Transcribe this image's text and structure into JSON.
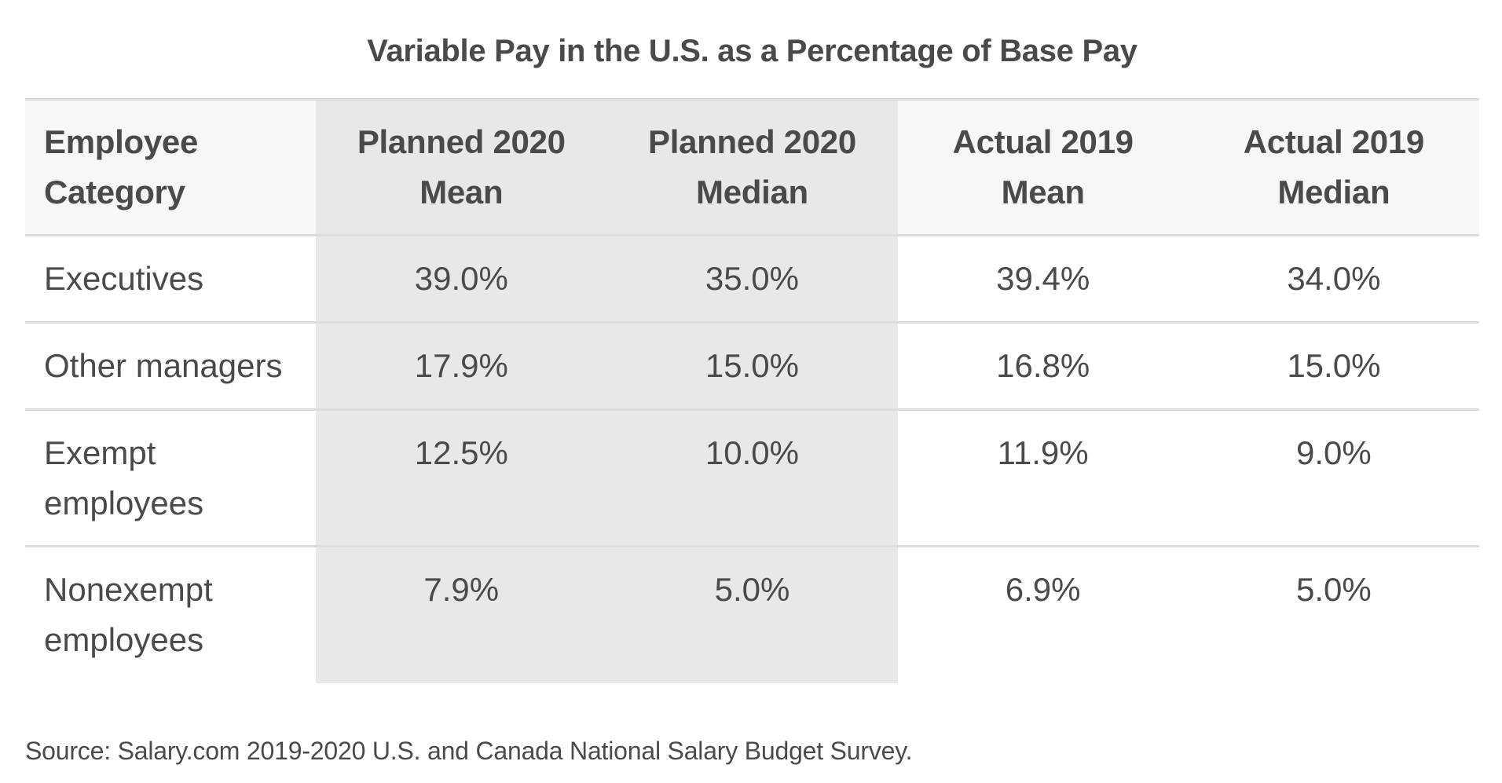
{
  "title": "Variable Pay in the U.S. as a Percentage of Base Pay",
  "table": {
    "headers": [
      {
        "line1": "Employee",
        "line2": "Category"
      },
      {
        "line1": "Planned 2020",
        "line2": "Mean"
      },
      {
        "line1": "Planned 2020",
        "line2": "Median"
      },
      {
        "line1": "Actual 2019",
        "line2": "Mean"
      },
      {
        "line1": "Actual 2019",
        "line2": "Median"
      }
    ],
    "rows": [
      {
        "category_line1": "Executives",
        "category_line2": "",
        "values": [
          "39.0%",
          "35.0%",
          "39.4%",
          "34.0%"
        ]
      },
      {
        "category_line1": "Other managers",
        "category_line2": "",
        "values": [
          "17.9%",
          "15.0%",
          "16.8%",
          "15.0%"
        ]
      },
      {
        "category_line1": "Exempt",
        "category_line2": "employees",
        "values": [
          "12.5%",
          "10.0%",
          "11.9%",
          "9.0%"
        ]
      },
      {
        "category_line1": "Nonexempt",
        "category_line2": "employees",
        "values": [
          "7.9%",
          "5.0%",
          "6.9%",
          "5.0%"
        ]
      }
    ]
  },
  "source": "Source: Salary.com 2019-2020 U.S. and Canada National Salary Budget Survey.",
  "colors": {
    "text": "#4a4a4a",
    "header_bg": "#f7f7f7",
    "highlight_column_bg": "#e8e8e8",
    "border": "#dcdcdc"
  },
  "chart_data": {
    "type": "table",
    "title": "Variable Pay in the U.S. as a Percentage of Base Pay",
    "columns": [
      "Employee Category",
      "Planned 2020 Mean",
      "Planned 2020 Median",
      "Actual 2019 Mean",
      "Actual 2019 Median"
    ],
    "rows": [
      [
        "Executives",
        "39.0%",
        "35.0%",
        "39.4%",
        "34.0%"
      ],
      [
        "Other managers",
        "17.9%",
        "15.0%",
        "16.8%",
        "15.0%"
      ],
      [
        "Exempt employees",
        "12.5%",
        "10.0%",
        "11.9%",
        "9.0%"
      ],
      [
        "Nonexempt employees",
        "7.9%",
        "5.0%",
        "6.9%",
        "5.0%"
      ]
    ],
    "highlighted_columns": [
      "Planned 2020 Mean",
      "Planned 2020 Median"
    ],
    "source": "Source: Salary.com 2019-2020 U.S. and Canada National Salary Budget Survey."
  }
}
